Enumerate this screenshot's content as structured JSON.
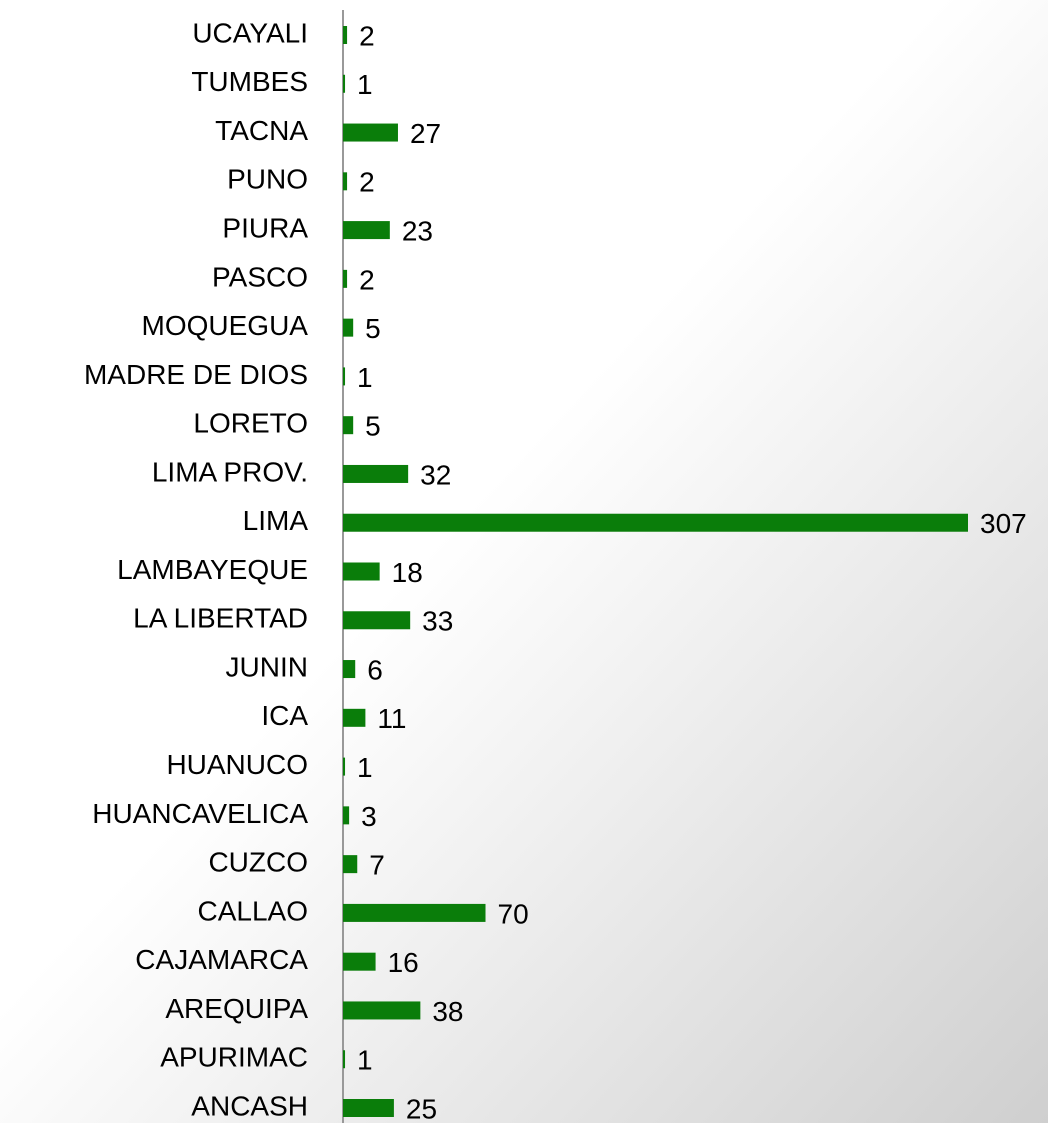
{
  "chart_data": {
    "type": "barh",
    "categories": [
      "UCAYALI",
      "TUMBES",
      "TACNA",
      "PUNO",
      "PIURA",
      "PASCO",
      "MOQUEGUA",
      "MADRE DE DIOS",
      "LORETO",
      "LIMA PROV.",
      "LIMA",
      "LAMBAYEQUE",
      "LA LIBERTAD",
      "JUNIN",
      "ICA",
      "HUANUCO",
      "HUANCAVELICA",
      "CUZCO",
      "CALLAO",
      "CAJAMARCA",
      "AREQUIPA",
      "APURIMAC",
      "ANCASH"
    ],
    "values": [
      2,
      1,
      27,
      2,
      23,
      2,
      5,
      1,
      5,
      32,
      307,
      18,
      33,
      6,
      11,
      1,
      3,
      7,
      70,
      16,
      38,
      1,
      25
    ],
    "color": "#0a7d0a"
  }
}
